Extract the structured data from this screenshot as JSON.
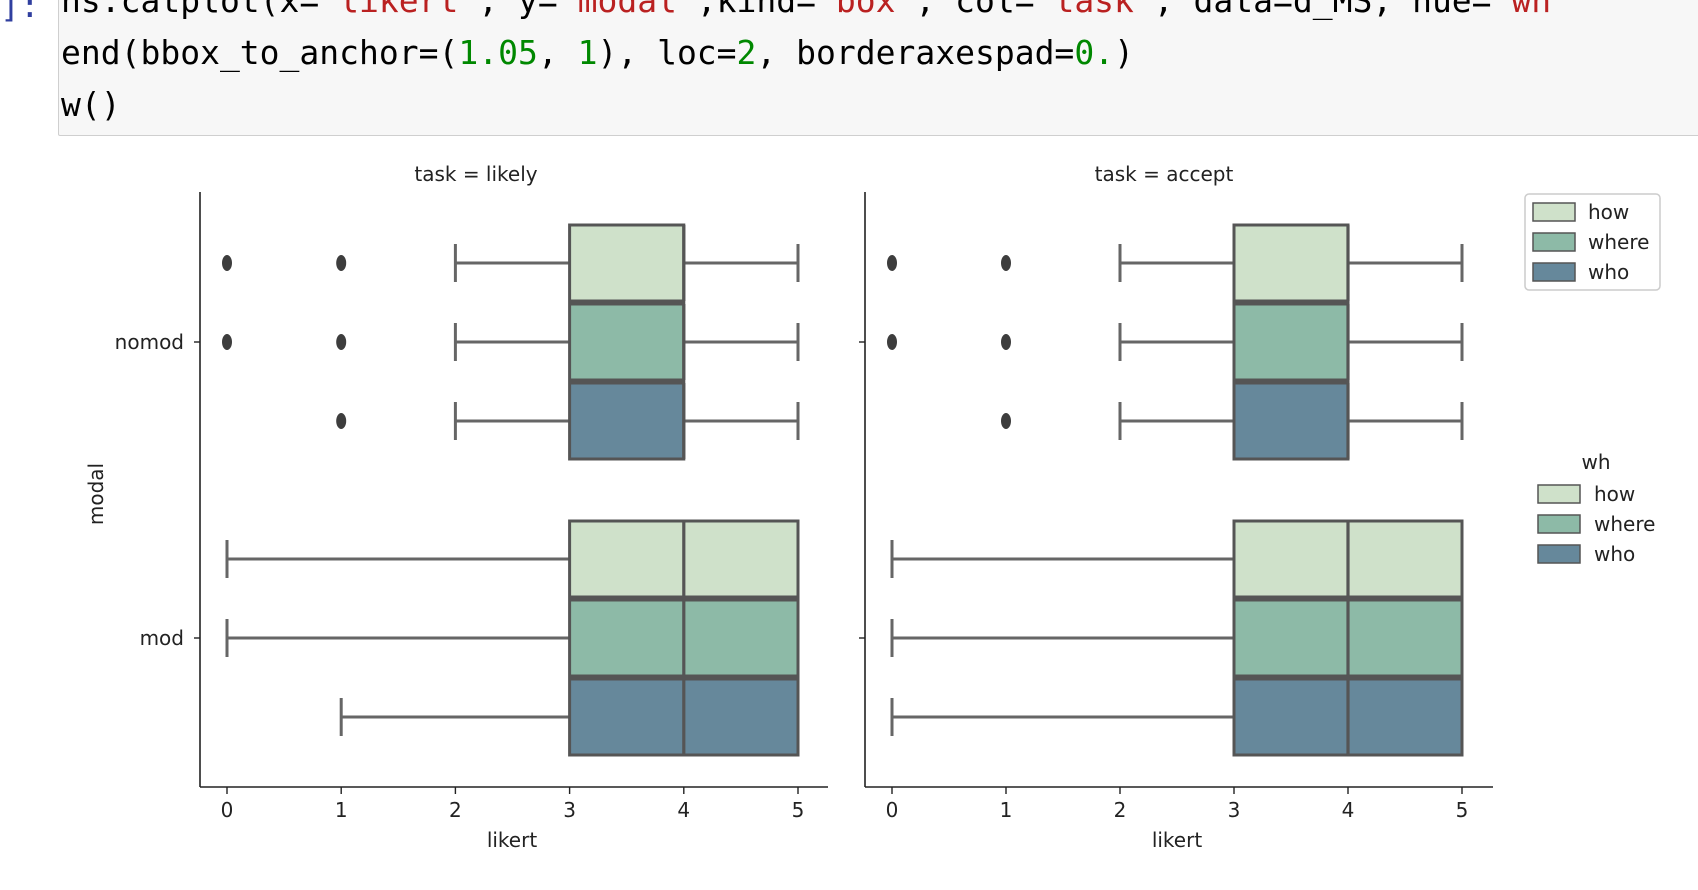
{
  "notebook": {
    "prompt": "]:",
    "code_lines": [
      [
        {
          "t": "ns.catplot(x=",
          "c": "plain"
        },
        {
          "t": "\"likert\"",
          "c": "str"
        },
        {
          "t": ", y=",
          "c": "plain"
        },
        {
          "t": "\"modal\"",
          "c": "str"
        },
        {
          "t": ",kind=",
          "c": "plain"
        },
        {
          "t": "\"box\"",
          "c": "str"
        },
        {
          "t": ", col=",
          "c": "plain"
        },
        {
          "t": "\"task\"",
          "c": "str"
        },
        {
          "t": ", data=d_MS, hue=",
          "c": "plain"
        },
        {
          "t": "\"wh",
          "c": "str"
        }
      ],
      [
        {
          "t": "end(bbox_to_anchor=(",
          "c": "plain"
        },
        {
          "t": "1.05",
          "c": "num"
        },
        {
          "t": ", ",
          "c": "plain"
        },
        {
          "t": "1",
          "c": "num"
        },
        {
          "t": "), loc=",
          "c": "plain"
        },
        {
          "t": "2",
          "c": "num"
        },
        {
          "t": ", borderaxespad=",
          "c": "plain"
        },
        {
          "t": "0.",
          "c": "num"
        },
        {
          "t": ")",
          "c": "plain"
        }
      ],
      [
        {
          "t": "w()",
          "c": "plain"
        }
      ]
    ]
  },
  "chart_data": {
    "type": "box",
    "orientation": "horizontal",
    "x_field": "likert",
    "y_field": "modal",
    "xlabel": "likert",
    "ylabel": "modal",
    "xlim": [
      -0.24,
      5.24
    ],
    "xticks": [
      "0",
      "1",
      "2",
      "3",
      "4",
      "5"
    ],
    "categories": [
      "nomod",
      "mod"
    ],
    "hue_title": "wh",
    "hue_levels": [
      "how",
      "where",
      "who"
    ],
    "colors": {
      "how": "#cfe1ca",
      "where": "#8dbaa7",
      "who": "#66889b",
      "line": "#555555",
      "axis": "#222222"
    },
    "panels": [
      {
        "title": "task = likely",
        "boxes": [
          {
            "modal": "nomod",
            "wh": "how",
            "whislo": 2,
            "q1": 3,
            "med": 4,
            "q3": 4,
            "whishi": 5,
            "fliers": [
              0,
              1
            ]
          },
          {
            "modal": "nomod",
            "wh": "where",
            "whislo": 2,
            "q1": 3,
            "med": 4,
            "q3": 4,
            "whishi": 5,
            "fliers": [
              0,
              1
            ]
          },
          {
            "modal": "nomod",
            "wh": "who",
            "whislo": 2,
            "q1": 3,
            "med": 4,
            "q3": 4,
            "whishi": 5,
            "fliers": [
              1
            ]
          },
          {
            "modal": "mod",
            "wh": "how",
            "whislo": 0,
            "q1": 3,
            "med": 4,
            "q3": 5,
            "whishi": 5,
            "fliers": []
          },
          {
            "modal": "mod",
            "wh": "where",
            "whislo": 0,
            "q1": 3,
            "med": 4,
            "q3": 5,
            "whishi": 5,
            "fliers": []
          },
          {
            "modal": "mod",
            "wh": "who",
            "whislo": 1,
            "q1": 3,
            "med": 4,
            "q3": 5,
            "whishi": 5,
            "fliers": []
          }
        ]
      },
      {
        "title": "task = accept",
        "boxes": [
          {
            "modal": "nomod",
            "wh": "how",
            "whislo": 2,
            "q1": 3,
            "med": 4,
            "q3": 4,
            "whishi": 5,
            "fliers": [
              0,
              1
            ]
          },
          {
            "modal": "nomod",
            "wh": "where",
            "whislo": 2,
            "q1": 3,
            "med": 4,
            "q3": 4,
            "whishi": 5,
            "fliers": [
              0,
              1
            ]
          },
          {
            "modal": "nomod",
            "wh": "who",
            "whislo": 2,
            "q1": 3,
            "med": 4,
            "q3": 4,
            "whishi": 5,
            "fliers": [
              1
            ]
          },
          {
            "modal": "mod",
            "wh": "how",
            "whislo": 0,
            "q1": 3,
            "med": 4,
            "q3": 5,
            "whishi": 5,
            "fliers": []
          },
          {
            "modal": "mod",
            "wh": "where",
            "whislo": 0,
            "q1": 3,
            "med": 4,
            "q3": 5,
            "whishi": 5,
            "fliers": []
          },
          {
            "modal": "mod",
            "wh": "who",
            "whislo": 0,
            "q1": 3,
            "med": 4,
            "q3": 5,
            "whishi": 5,
            "fliers": []
          }
        ]
      }
    ],
    "legends": [
      {
        "title": "",
        "entries": [
          "how",
          "where",
          "who"
        ],
        "frame": true,
        "placement": "upper-right"
      },
      {
        "title": "wh",
        "entries": [
          "how",
          "where",
          "who"
        ],
        "frame": false,
        "placement": "right"
      }
    ]
  }
}
